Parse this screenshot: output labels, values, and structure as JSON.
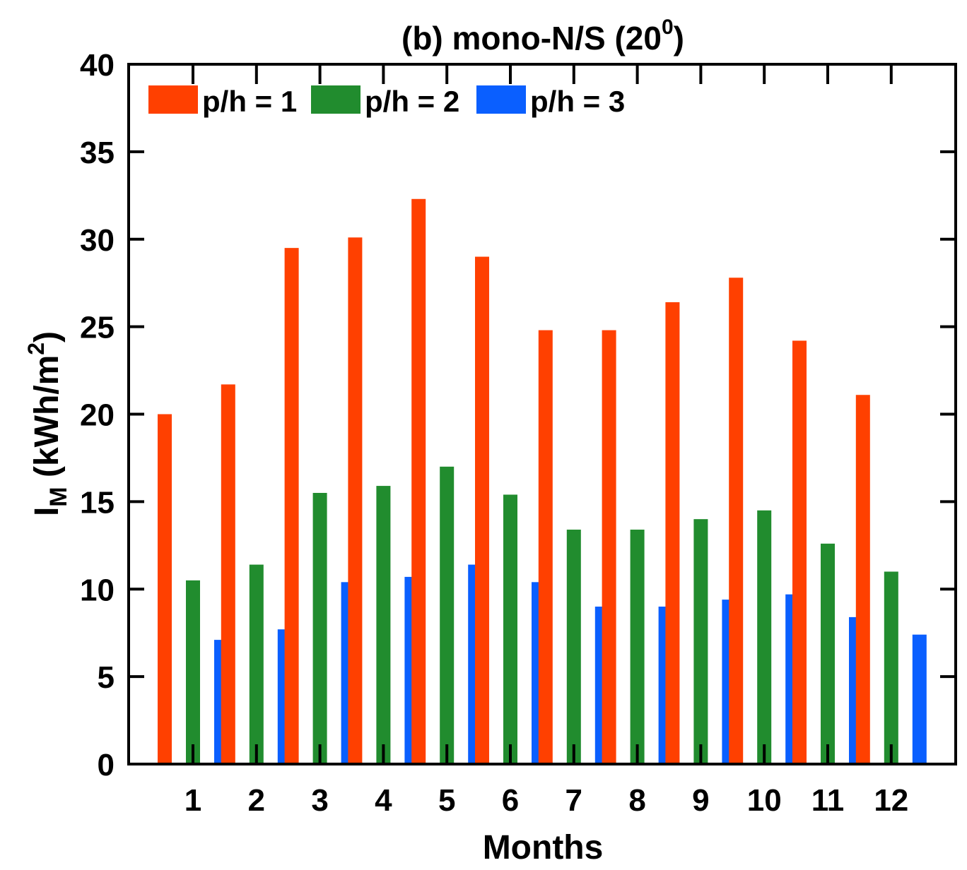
{
  "chart_data": {
    "type": "bar",
    "title_main": "(b) mono-N/S (20",
    "title_sup": "0",
    "title_close": ")",
    "xlabel": "Months",
    "ylabel_main": "I",
    "ylabel_sub": "M",
    "ylabel_unit": " (kWh/m",
    "ylabel_unit_sup": "2",
    "ylabel_close": ")",
    "categories": [
      "1",
      "2",
      "3",
      "4",
      "5",
      "6",
      "7",
      "8",
      "9",
      "10",
      "11",
      "12"
    ],
    "ylim": [
      0,
      40
    ],
    "yticks": [
      0,
      5,
      10,
      15,
      20,
      25,
      30,
      35,
      40
    ],
    "legend_position": "top-left",
    "series": [
      {
        "name": "p/h = 1",
        "color": "#ff4000",
        "values": [
          20.0,
          21.7,
          29.5,
          30.1,
          32.3,
          29.0,
          24.8,
          24.8,
          26.4,
          27.8,
          24.2,
          21.1
        ]
      },
      {
        "name": "p/h = 2",
        "color": "#218c2e",
        "values": [
          10.5,
          11.4,
          15.5,
          15.9,
          17.0,
          15.4,
          13.4,
          13.4,
          14.0,
          14.5,
          12.6,
          11.0
        ]
      },
      {
        "name": "p/h = 3",
        "color": "#0a5fff",
        "values": [
          7.1,
          7.7,
          10.4,
          10.7,
          11.4,
          10.4,
          9.0,
          9.0,
          9.4,
          9.7,
          8.4,
          7.4
        ]
      }
    ]
  }
}
